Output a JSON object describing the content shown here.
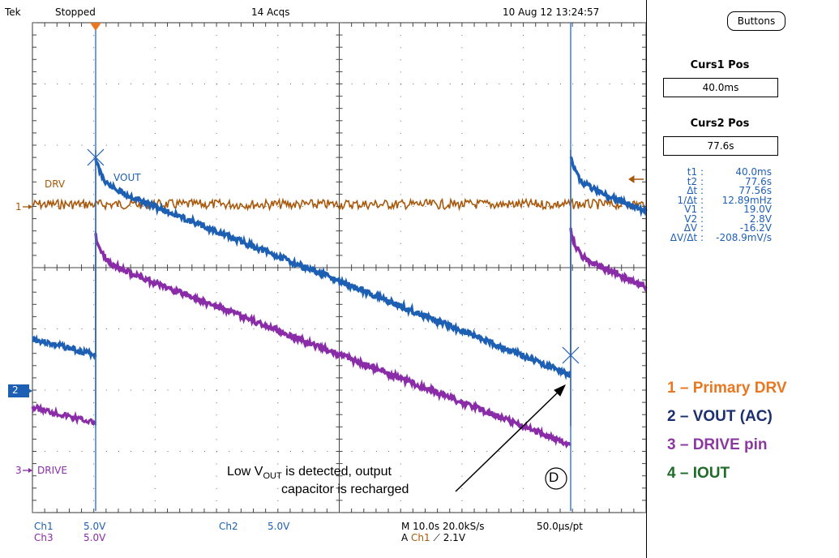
{
  "header": {
    "brand": "Tek",
    "state": "Stopped",
    "acqs": "14 Acqs",
    "datetime": "10 Aug 12 13:24:57"
  },
  "side": {
    "buttons_label": "Buttons",
    "curs1_title": "Curs1 Pos",
    "curs1_value": "40.0ms",
    "curs2_title": "Curs2 Pos",
    "curs2_value": "77.6s",
    "measurements": [
      {
        "label": "t1 :",
        "value": "40.0ms"
      },
      {
        "label": "t2 :",
        "value": "77.6s"
      },
      {
        "label": "Δt :",
        "value": "77.56s"
      },
      {
        "label": "1/Δt :",
        "value": "12.89mHz"
      },
      {
        "label": "V1 :",
        "value": "19.0V"
      },
      {
        "label": "V2 :",
        "value": "2.8V"
      },
      {
        "label": "ΔV :",
        "value": "-16.2V"
      },
      {
        "label": "ΔV/Δt :",
        "value": "-208.9mV/s"
      }
    ]
  },
  "legend": [
    {
      "text": "1 – Primary DRV",
      "color": "#e87722"
    },
    {
      "text": "2 – VOUT (AC)",
      "color": "#1c2f6e"
    },
    {
      "text": "3 – DRIVE pin",
      "color": "#8a3a9e"
    },
    {
      "text": "4 – IOUT",
      "color": "#1f6b2a"
    }
  ],
  "traces": {
    "drv_label": "DRV",
    "vout_label": "VOUT",
    "drive_label": "DRIVE",
    "ch1_marker": "1",
    "ch2_marker": "2",
    "ch3_marker": "3",
    "colors": {
      "drv": "#a8580a",
      "vout": "#1d5fb3",
      "drive": "#8a2ba8",
      "cursor": "#3a7ed8"
    }
  },
  "annotation": {
    "line1_pre": "Low V",
    "line1_sub": "OUT",
    "line1_post": " is detected, output",
    "line2": "capacitor is recharged",
    "marker": "D"
  },
  "bottom": {
    "ch1_name": "Ch1",
    "ch1_scale": "5.0V",
    "ch3_name": "Ch3",
    "ch3_scale": "5.0V",
    "ch2_name": "Ch2",
    "ch2_scale": "5.0V",
    "timebase": "M 10.0s 20.0kS/s",
    "pt": "50.0µs/pt",
    "trigger_prefix": "A",
    "trigger_ch": "Ch1",
    "trigger_level": "2.1V"
  }
}
